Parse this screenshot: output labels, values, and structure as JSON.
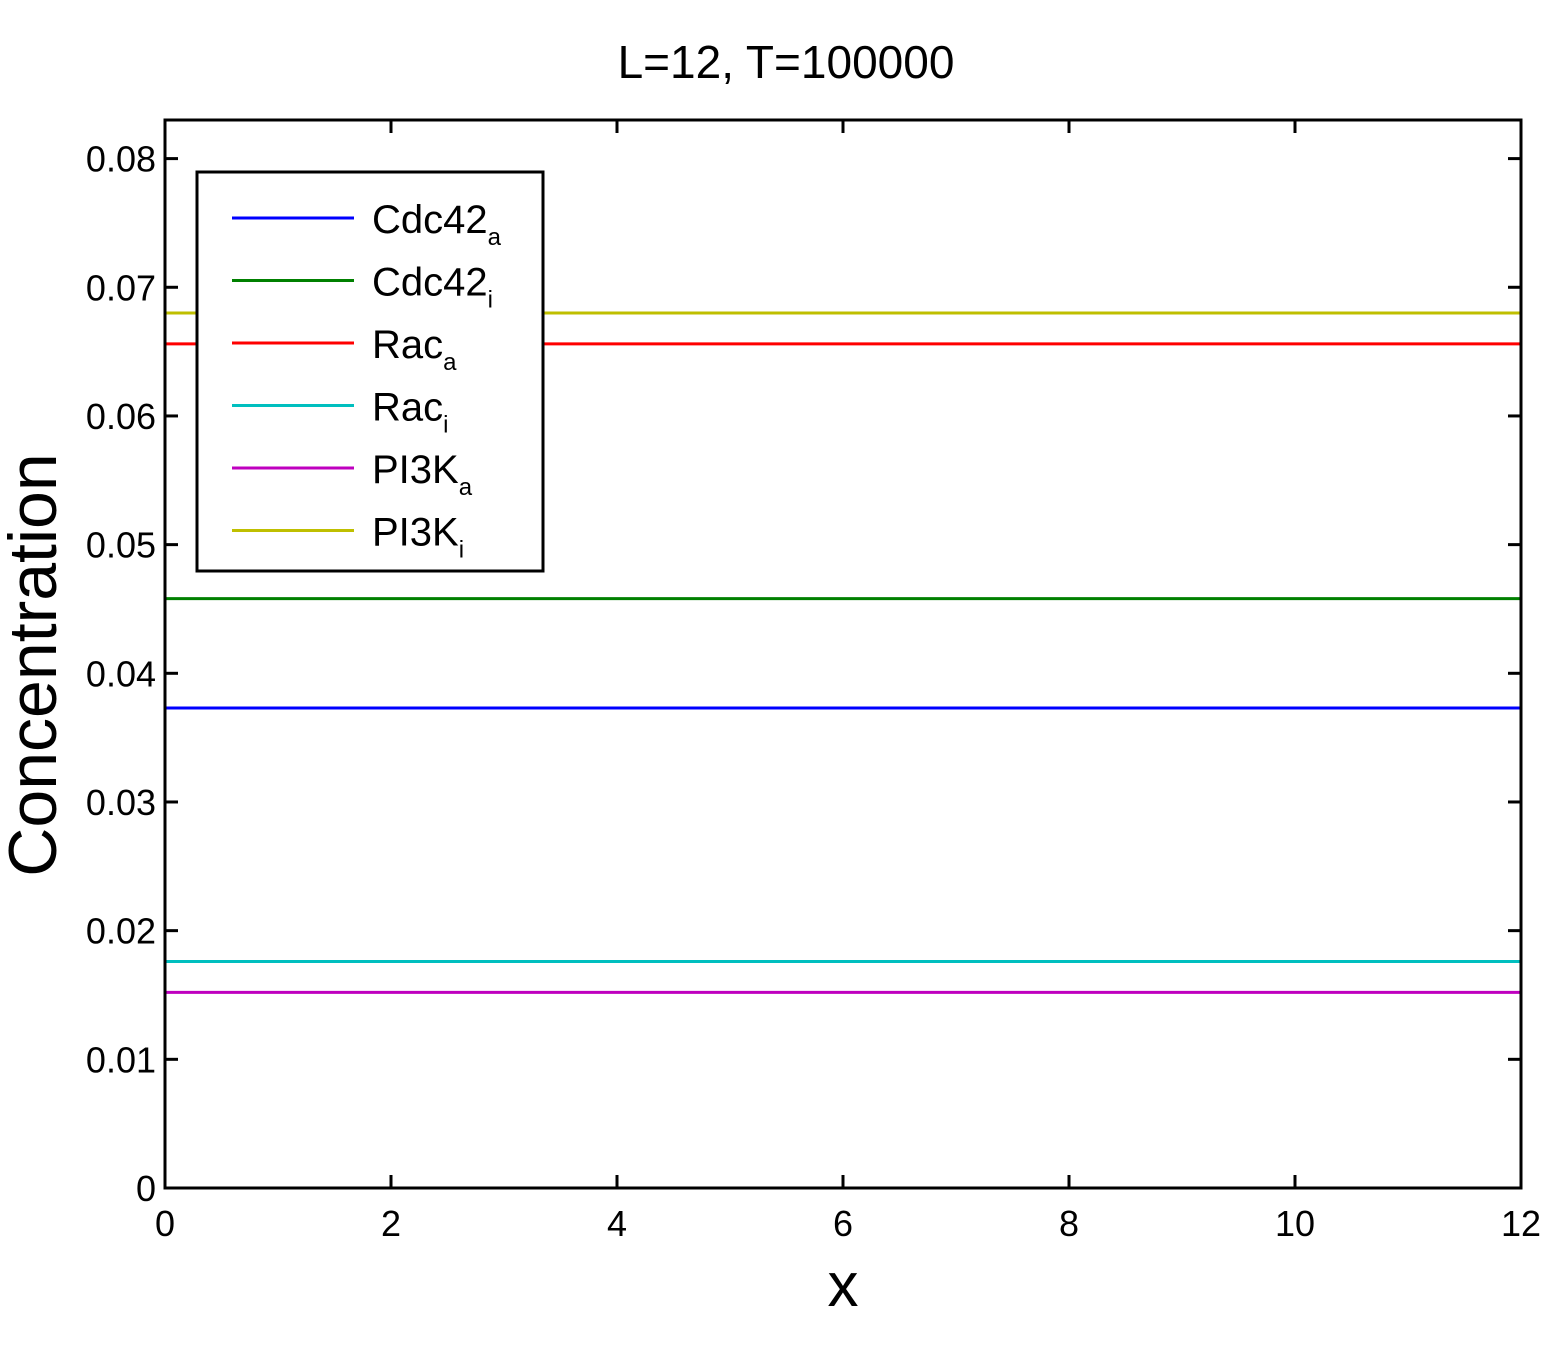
{
  "chart_data": {
    "type": "line",
    "title": "L=12, T=100000",
    "xlabel": "x",
    "ylabel": "Concentration",
    "xlim": [
      0,
      12
    ],
    "ylim": [
      0,
      0.083
    ],
    "xticks": [
      0,
      2,
      4,
      6,
      8,
      10,
      12
    ],
    "xtick_labels": [
      "0",
      "2",
      "4",
      "6",
      "8",
      "10",
      "12"
    ],
    "yticks": [
      0,
      0.01,
      0.02,
      0.03,
      0.04,
      0.05,
      0.06,
      0.07,
      0.08
    ],
    "ytick_labels": [
      "0",
      "0.01",
      "0.02",
      "0.03",
      "0.04",
      "0.05",
      "0.06",
      "0.07",
      "0.08"
    ],
    "grid": false,
    "legend_position": "top-left",
    "series": [
      {
        "base": "Cdc42",
        "sub": "a",
        "color": "#0000ff",
        "x": [
          0,
          12
        ],
        "y": [
          0.0373,
          0.0373
        ]
      },
      {
        "base": "Cdc42",
        "sub": "i",
        "color": "#008000",
        "x": [
          0,
          12
        ],
        "y": [
          0.0458,
          0.0458
        ]
      },
      {
        "base": "Rac",
        "sub": "a",
        "color": "#ff0000",
        "x": [
          0,
          12
        ],
        "y": [
          0.0656,
          0.0656
        ]
      },
      {
        "base": "Rac",
        "sub": "i",
        "color": "#00bfbf",
        "x": [
          0,
          12
        ],
        "y": [
          0.0176,
          0.0176
        ]
      },
      {
        "base": "PI3K",
        "sub": "a",
        "color": "#bf00bf",
        "x": [
          0,
          12
        ],
        "y": [
          0.0152,
          0.0152
        ]
      },
      {
        "base": "PI3K",
        "sub": "i",
        "color": "#bfbf00",
        "x": [
          0,
          12
        ],
        "y": [
          0.068,
          0.068
        ]
      }
    ]
  }
}
